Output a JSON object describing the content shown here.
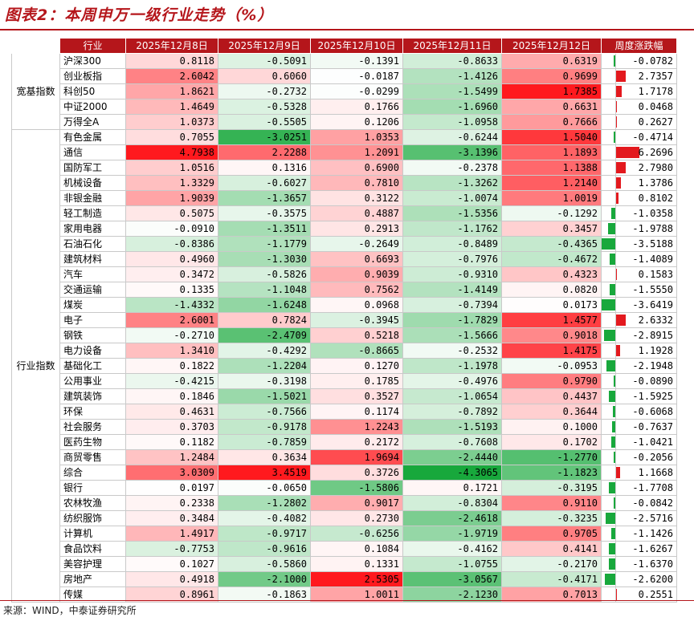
{
  "title": "图表2：本周申万一级行业走势（%）",
  "source": "来源：WIND，中泰证券研究所",
  "colors": {
    "brand": "#b5161b",
    "up": "#e3191e",
    "down": "#18a83c"
  },
  "table": {
    "headers": [
      "行业",
      "2025年12月8日",
      "2025年12月9日",
      "2025年12月10日",
      "2025年12月11日",
      "2025年12月12日",
      "周度涨跌幅"
    ],
    "groups": [
      {
        "label": "宽基指数",
        "rows": [
          [
            "沪深300",
            "0.8118",
            "-0.5091",
            "-0.1391",
            "-0.8633",
            "0.6319",
            "-0.0782"
          ],
          [
            "创业板指",
            "2.6042",
            "0.6060",
            "-0.0187",
            "-1.4126",
            "0.9699",
            "2.7357"
          ],
          [
            "科创50",
            "1.8621",
            "-0.2732",
            "-0.0299",
            "-1.5499",
            "1.7385",
            "1.7178"
          ],
          [
            "中证2000",
            "1.4649",
            "-0.5328",
            "0.1766",
            "-1.6960",
            "0.6631",
            "0.0468"
          ],
          [
            "万得全A",
            "1.0373",
            "-0.5505",
            "0.1206",
            "-1.0958",
            "0.7666",
            "0.2627"
          ]
        ]
      },
      {
        "label": "行业指数",
        "rows": [
          [
            "有色金属",
            "0.7055",
            "-3.0251",
            "1.0353",
            "-0.6244",
            "1.5040",
            "-0.4714"
          ],
          [
            "通信",
            "4.7938",
            "2.2288",
            "1.2091",
            "-3.1396",
            "1.1893",
            "6.2696"
          ],
          [
            "国防军工",
            "1.0516",
            "0.1316",
            "0.6900",
            "-0.2378",
            "1.1388",
            "2.7980"
          ],
          [
            "机械设备",
            "1.3329",
            "-0.6027",
            "0.7810",
            "-1.3262",
            "1.2140",
            "1.3786"
          ],
          [
            "非银金融",
            "1.9039",
            "-1.3657",
            "0.3122",
            "-1.0074",
            "1.0019",
            "0.8102"
          ],
          [
            "轻工制造",
            "0.5075",
            "-0.3575",
            "0.4887",
            "-1.5356",
            "-0.1292",
            "-1.0358"
          ],
          [
            "家用电器",
            "-0.0910",
            "-1.3511",
            "0.2913",
            "-1.1762",
            "0.3457",
            "-1.9788"
          ],
          [
            "石油石化",
            "-0.8386",
            "-1.1779",
            "-0.2649",
            "-0.8489",
            "-0.4365",
            "-3.5188"
          ],
          [
            "建筑材料",
            "0.4960",
            "-1.3030",
            "0.6693",
            "-0.7976",
            "-0.4672",
            "-1.4089"
          ],
          [
            "汽车",
            "0.3472",
            "-0.5826",
            "0.9039",
            "-0.9310",
            "0.4323",
            "0.1583"
          ],
          [
            "交通运输",
            "0.1335",
            "-1.1048",
            "0.7562",
            "-1.4149",
            "0.0820",
            "-1.5550"
          ],
          [
            "煤炭",
            "-1.4332",
            "-1.6248",
            "0.0968",
            "-0.7394",
            "0.0173",
            "-3.6419"
          ],
          [
            "电子",
            "2.6001",
            "0.7824",
            "-0.3945",
            "-1.7829",
            "1.4577",
            "2.6332"
          ],
          [
            "钢铁",
            "-0.2710",
            "-2.4709",
            "0.5218",
            "-1.5666",
            "0.9018",
            "-2.8915"
          ],
          [
            "电力设备",
            "1.3410",
            "-0.4292",
            "-0.8665",
            "-0.2532",
            "1.4175",
            "1.1928"
          ],
          [
            "基础化工",
            "0.1822",
            "-1.2204",
            "0.1270",
            "-1.1978",
            "-0.0953",
            "-2.1948"
          ],
          [
            "公用事业",
            "-0.4215",
            "-0.3198",
            "0.1785",
            "-0.4976",
            "0.9790",
            "-0.0890"
          ],
          [
            "建筑装饰",
            "0.1846",
            "-1.5021",
            "0.3527",
            "-1.0654",
            "0.4437",
            "-1.5925"
          ],
          [
            "环保",
            "0.4631",
            "-0.7566",
            "0.1174",
            "-0.7892",
            "0.3644",
            "-0.6068"
          ],
          [
            "社会服务",
            "0.3703",
            "-0.9178",
            "1.2243",
            "-1.5193",
            "0.1000",
            "-0.7637"
          ],
          [
            "医药生物",
            "0.1182",
            "-0.7859",
            "0.2172",
            "-0.7608",
            "0.1702",
            "-1.0421"
          ],
          [
            "商贸零售",
            "1.2484",
            "0.3634",
            "1.9694",
            "-2.4440",
            "-1.2770",
            "-0.2056"
          ],
          [
            "综合",
            "3.0309",
            "3.4519",
            "0.3726",
            "-4.3065",
            "-1.1823",
            "1.1668"
          ],
          [
            "银行",
            "0.0197",
            "-0.0650",
            "-1.5806",
            "0.1721",
            "-0.3195",
            "-1.7708"
          ],
          [
            "农林牧渔",
            "0.2338",
            "-1.2802",
            "0.9017",
            "-0.8304",
            "0.9110",
            "-0.0842"
          ],
          [
            "纺织服饰",
            "0.3484",
            "-0.4082",
            "0.2730",
            "-2.4618",
            "-0.3235",
            "-2.5716"
          ],
          [
            "计算机",
            "1.4917",
            "-0.9717",
            "-0.6256",
            "-1.9719",
            "0.9705",
            "-1.1426"
          ],
          [
            "食品饮料",
            "-0.7753",
            "-0.9616",
            "0.1084",
            "-0.4162",
            "0.4141",
            "-1.6267"
          ],
          [
            "美容护理",
            "0.1027",
            "-0.5860",
            "0.1331",
            "-1.0755",
            "-0.2170",
            "-1.6370"
          ],
          [
            "房地产",
            "0.4918",
            "-2.1000",
            "2.5305",
            "-3.0567",
            "-0.4171",
            "-2.6200"
          ],
          [
            "传媒",
            "0.8961",
            "-0.1863",
            "1.0011",
            "-2.1230",
            "0.7013",
            "0.2551"
          ]
        ]
      }
    ]
  }
}
